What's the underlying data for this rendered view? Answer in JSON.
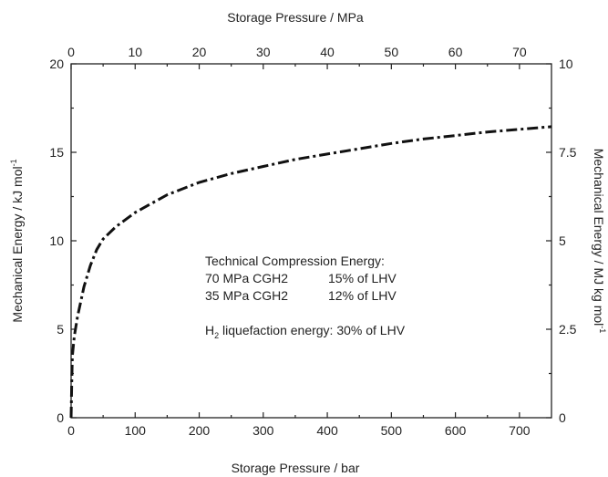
{
  "chart_data": {
    "type": "line",
    "title": "",
    "xlabel_bottom": "Storage Pressure / bar",
    "xlabel_top": "Storage Pressure / MPa",
    "ylabel_left": "Mechanical Energy / kJ mol",
    "ylabel_left_sup": "-1",
    "ylabel_right": "Mechanical Energy / MJ kg mol",
    "ylabel_right_sup": "-1",
    "xlim_bottom": [
      0,
      750
    ],
    "xlim_top": [
      0,
      75
    ],
    "ylim_left": [
      0,
      20
    ],
    "ylim_right": [
      0,
      10
    ],
    "x_ticks_bottom": [
      0,
      100,
      200,
      300,
      400,
      500,
      600,
      700
    ],
    "x_ticks_top": [
      0,
      10,
      20,
      30,
      40,
      50,
      60,
      70
    ],
    "y_ticks_left": [
      0,
      5,
      10,
      15,
      20
    ],
    "y_ticks_right": [
      "0",
      "2.5",
      "5",
      "7.5",
      "10"
    ],
    "grid": false,
    "series": [
      {
        "x": [
          0,
          1,
          2,
          5,
          10,
          20,
          30,
          40,
          50,
          70,
          100,
          150,
          200,
          250,
          300,
          350,
          400,
          450,
          500,
          550,
          600,
          650,
          700,
          750
        ],
        "y": [
          0,
          2.0,
          3.5,
          4.6,
          5.7,
          7.4,
          8.6,
          9.5,
          10.1,
          10.8,
          11.6,
          12.6,
          13.3,
          13.8,
          14.2,
          14.6,
          14.9,
          15.2,
          15.5,
          15.75,
          15.95,
          16.15,
          16.3,
          16.45
        ]
      }
    ],
    "annotations": {
      "heading": "Technical Compression Energy:",
      "rows": [
        {
          "label": "70 MPa CGH2",
          "value": "15% of LHV"
        },
        {
          "label": "35 MPa CGH2",
          "value": "12% of LHV"
        }
      ],
      "liq_prefix": "H",
      "liq_sub": "2",
      "liq_text": " liquefaction energy: 30% of LHV"
    }
  }
}
